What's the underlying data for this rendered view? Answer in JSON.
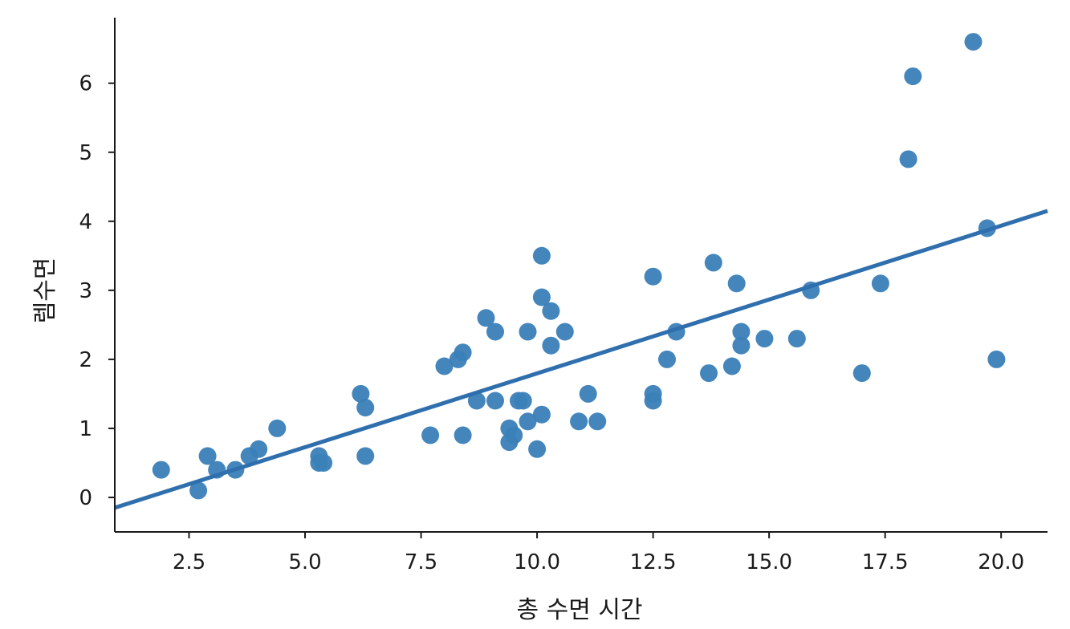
{
  "chart_data": {
    "type": "scatter",
    "title": "",
    "xlabel": "총 수면 시간",
    "ylabel": "렘수면",
    "xlim": [
      0.9,
      21.0
    ],
    "ylim": [
      -0.5,
      6.95
    ],
    "xticks": [
      2.5,
      5.0,
      7.5,
      10.0,
      12.5,
      15.0,
      17.5,
      20.0
    ],
    "xtick_labels": [
      "2.5",
      "5.0",
      "7.5",
      "10.0",
      "12.5",
      "15.0",
      "17.5",
      "20.0"
    ],
    "yticks": [
      0,
      1,
      2,
      3,
      4,
      5,
      6
    ],
    "ytick_labels": [
      "0",
      "1",
      "2",
      "3",
      "4",
      "5",
      "6"
    ],
    "grid": false,
    "legend": "none",
    "point_color": "#3a7fb8",
    "line_color": "#2f6fae",
    "points": [
      {
        "x": 1.9,
        "y": 0.4
      },
      {
        "x": 2.7,
        "y": 0.1
      },
      {
        "x": 2.9,
        "y": 0.6
      },
      {
        "x": 3.1,
        "y": 0.4
      },
      {
        "x": 3.5,
        "y": 0.4
      },
      {
        "x": 3.8,
        "y": 0.6
      },
      {
        "x": 4.0,
        "y": 0.7
      },
      {
        "x": 4.4,
        "y": 1.0
      },
      {
        "x": 5.3,
        "y": 0.6
      },
      {
        "x": 5.3,
        "y": 0.5
      },
      {
        "x": 5.4,
        "y": 0.5
      },
      {
        "x": 6.2,
        "y": 1.5
      },
      {
        "x": 6.3,
        "y": 1.3
      },
      {
        "x": 6.3,
        "y": 0.6
      },
      {
        "x": 7.7,
        "y": 0.9
      },
      {
        "x": 8.0,
        "y": 1.9
      },
      {
        "x": 8.3,
        "y": 2.0
      },
      {
        "x": 8.4,
        "y": 2.1
      },
      {
        "x": 8.4,
        "y": 0.9
      },
      {
        "x": 8.7,
        "y": 1.4
      },
      {
        "x": 8.9,
        "y": 2.6
      },
      {
        "x": 9.1,
        "y": 2.4
      },
      {
        "x": 9.1,
        "y": 1.4
      },
      {
        "x": 9.4,
        "y": 1.0
      },
      {
        "x": 9.4,
        "y": 0.8
      },
      {
        "x": 9.5,
        "y": 0.9
      },
      {
        "x": 9.6,
        "y": 1.4
      },
      {
        "x": 9.7,
        "y": 1.4
      },
      {
        "x": 9.8,
        "y": 2.4
      },
      {
        "x": 9.8,
        "y": 1.1
      },
      {
        "x": 10.0,
        "y": 0.7
      },
      {
        "x": 10.1,
        "y": 3.5
      },
      {
        "x": 10.1,
        "y": 2.9
      },
      {
        "x": 10.1,
        "y": 1.2
      },
      {
        "x": 10.3,
        "y": 2.7
      },
      {
        "x": 10.3,
        "y": 2.2
      },
      {
        "x": 10.6,
        "y": 2.4
      },
      {
        "x": 10.9,
        "y": 1.1
      },
      {
        "x": 11.1,
        "y": 1.5
      },
      {
        "x": 11.3,
        "y": 1.1
      },
      {
        "x": 12.5,
        "y": 3.2
      },
      {
        "x": 12.5,
        "y": 1.5
      },
      {
        "x": 12.5,
        "y": 1.4
      },
      {
        "x": 12.8,
        "y": 2.0
      },
      {
        "x": 13.0,
        "y": 2.4
      },
      {
        "x": 13.7,
        "y": 1.8
      },
      {
        "x": 13.8,
        "y": 3.4
      },
      {
        "x": 14.2,
        "y": 1.9
      },
      {
        "x": 14.3,
        "y": 3.1
      },
      {
        "x": 14.4,
        "y": 2.4
      },
      {
        "x": 14.4,
        "y": 2.2
      },
      {
        "x": 14.9,
        "y": 2.3
      },
      {
        "x": 15.6,
        "y": 2.3
      },
      {
        "x": 15.9,
        "y": 3.0
      },
      {
        "x": 17.0,
        "y": 1.8
      },
      {
        "x": 17.4,
        "y": 3.1
      },
      {
        "x": 18.0,
        "y": 4.9
      },
      {
        "x": 18.1,
        "y": 6.1
      },
      {
        "x": 19.4,
        "y": 6.6
      },
      {
        "x": 19.7,
        "y": 3.9
      },
      {
        "x": 19.9,
        "y": 2.0
      }
    ],
    "regression_line": {
      "x": [
        0.9,
        21.0
      ],
      "y": [
        -0.15,
        4.15
      ]
    }
  }
}
